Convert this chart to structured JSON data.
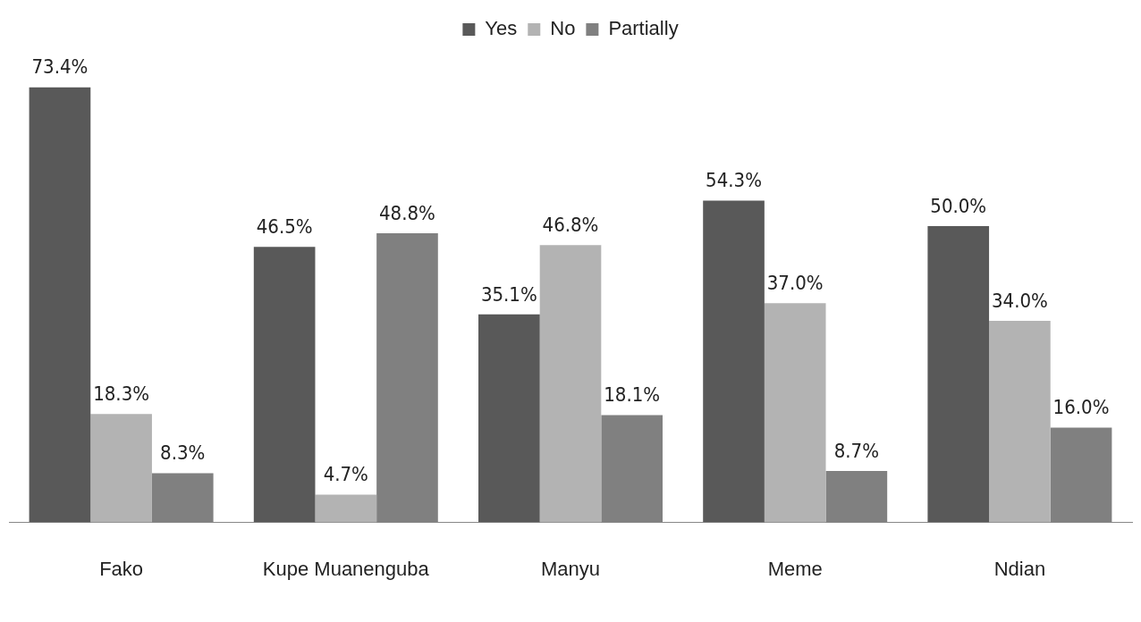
{
  "chart_data": {
    "type": "bar",
    "categories": [
      "Fako",
      "Kupe Muanenguba",
      "Manyu",
      "Meme",
      "Ndian"
    ],
    "series": [
      {
        "name": "Yes",
        "color": "#595959",
        "values": [
          73.4,
          46.5,
          35.1,
          54.3,
          50.0
        ],
        "value_labels": [
          "73.4%",
          "46.5%",
          "35.1%",
          "54.3%",
          "50.0%"
        ]
      },
      {
        "name": "No",
        "color": "#b3b3b3",
        "values": [
          18.3,
          4.7,
          46.8,
          37.0,
          34.0
        ],
        "value_labels": [
          "18.3%",
          "4.7%",
          "46.8%",
          "37.0%",
          "34.0%"
        ]
      },
      {
        "name": "Partially",
        "color": "#808080",
        "values": [
          8.3,
          48.8,
          18.1,
          8.7,
          16.0
        ],
        "value_labels": [
          "8.3%",
          "48.8%",
          "18.1%",
          "8.7%",
          "16.0%"
        ]
      }
    ],
    "legend": "top",
    "grid": false,
    "tick_labels": "x"
  }
}
